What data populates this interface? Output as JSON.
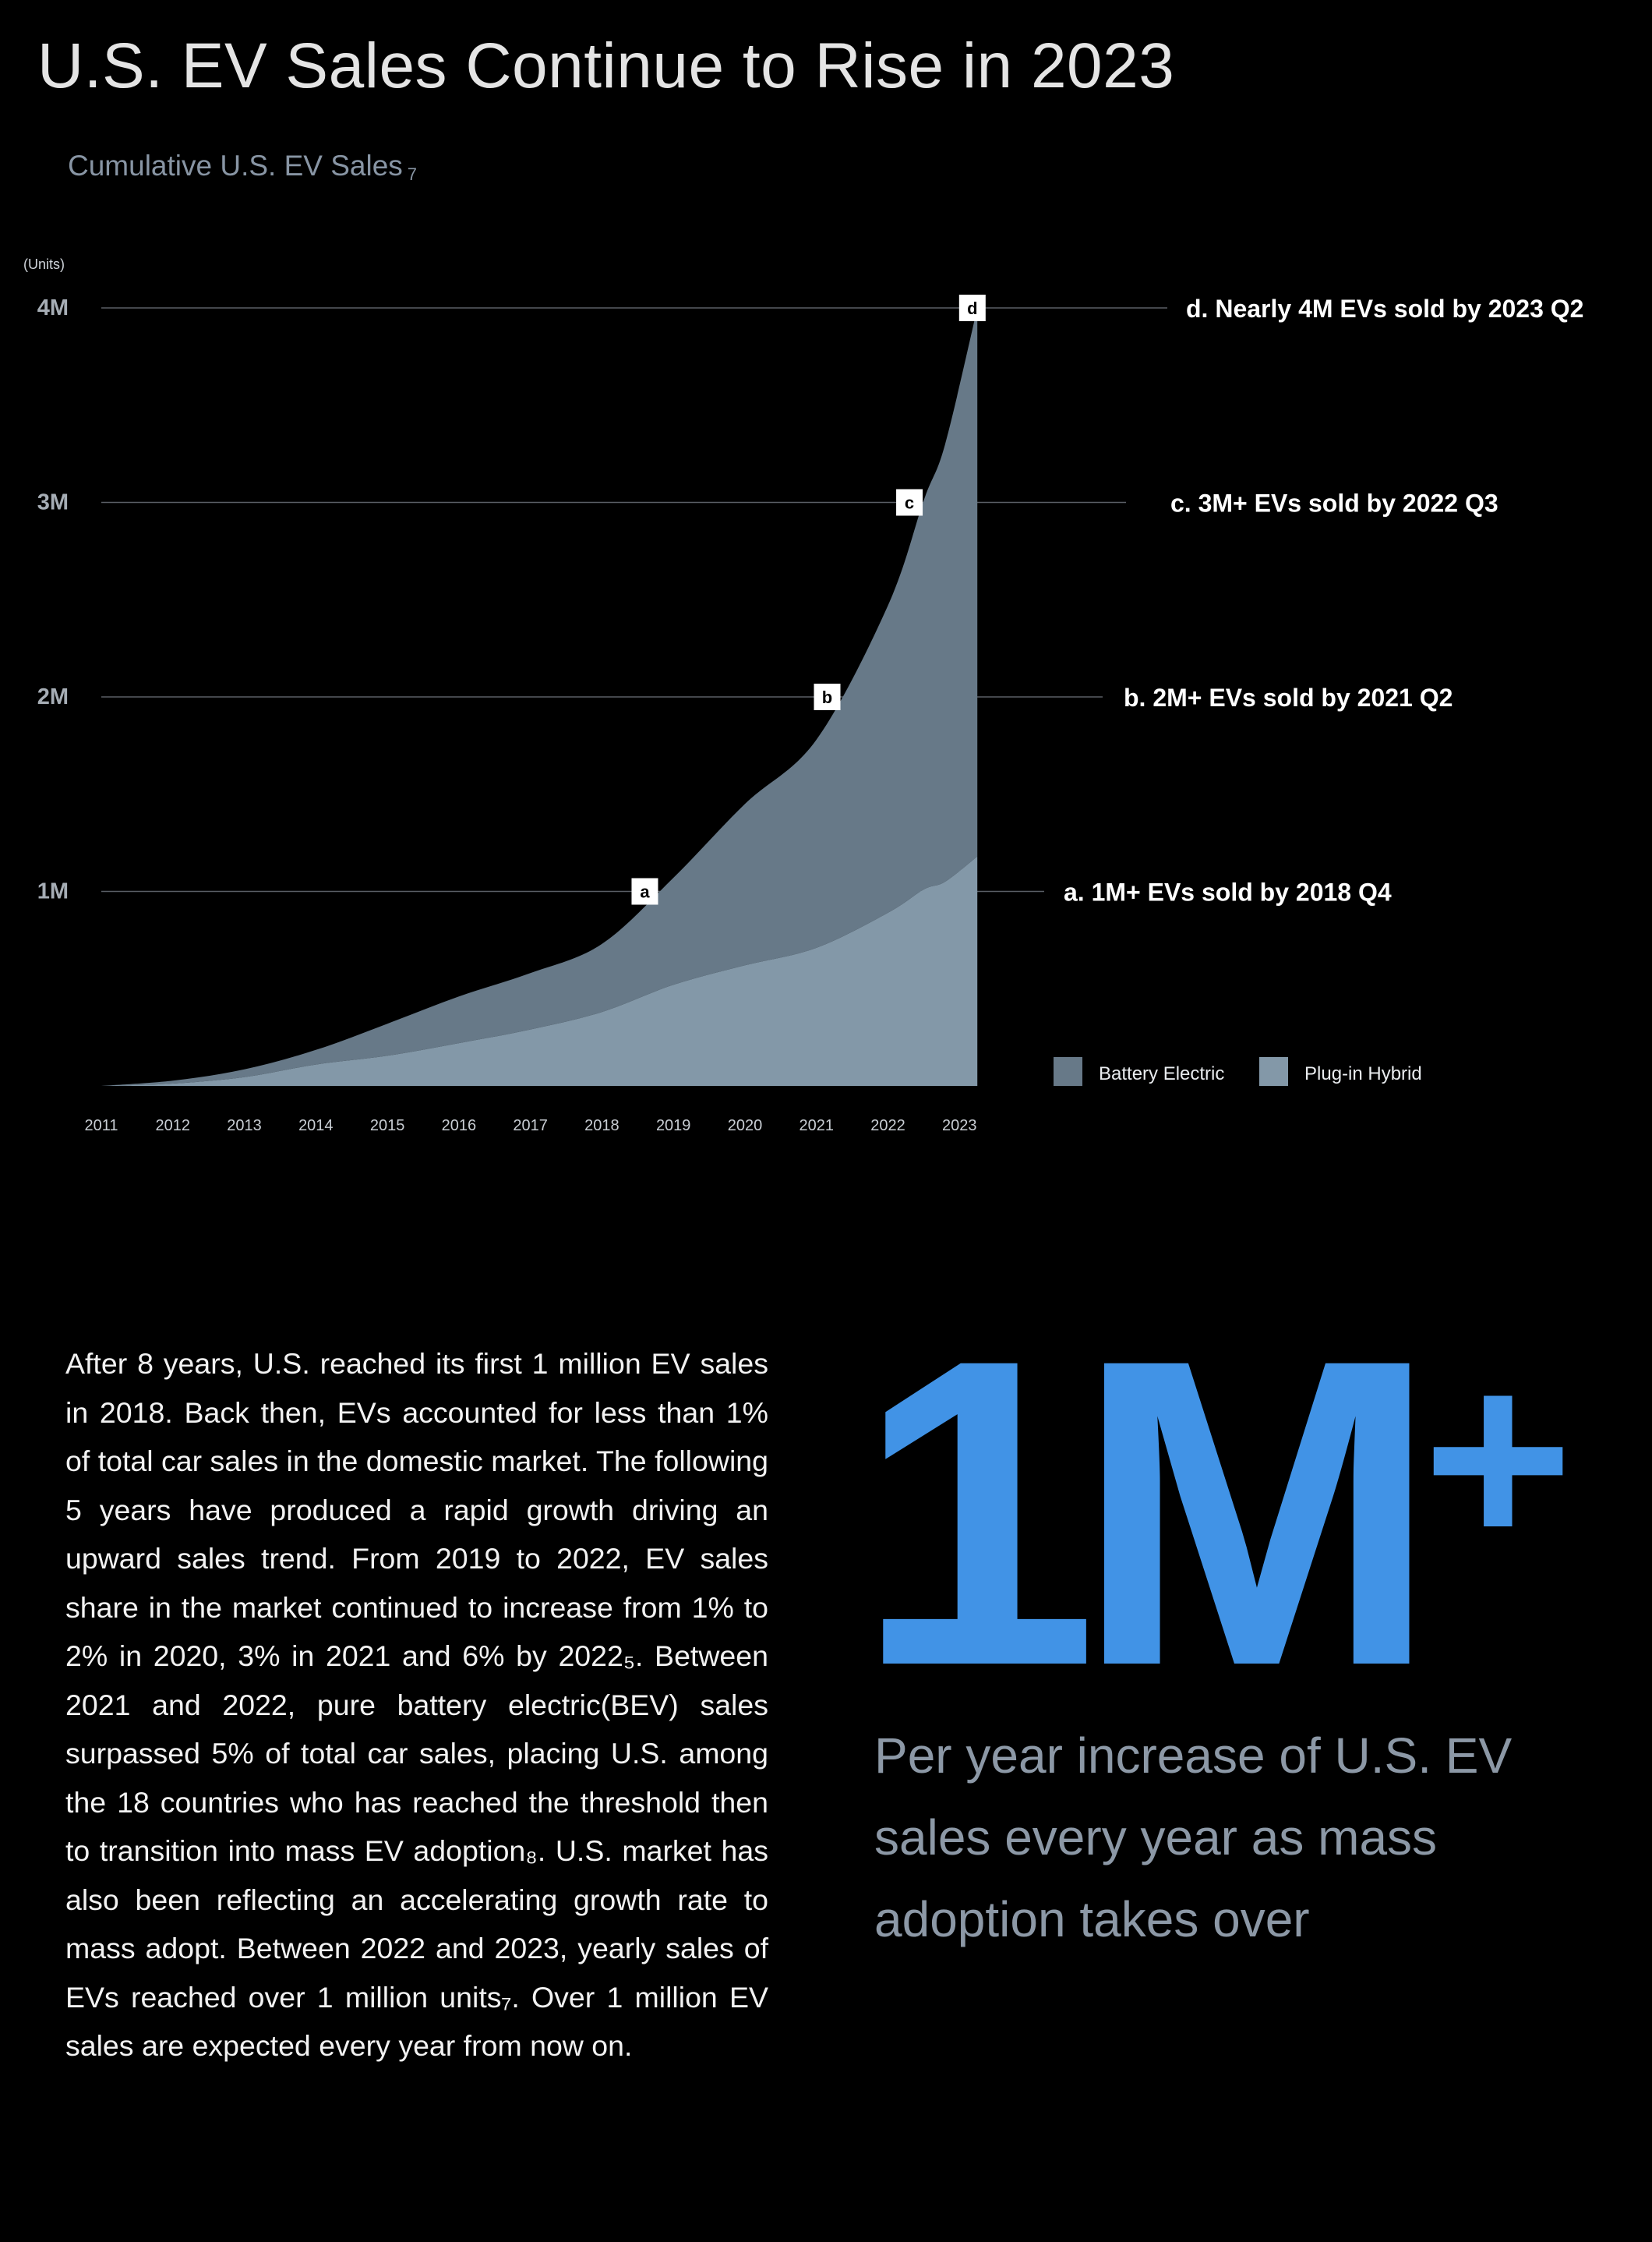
{
  "page": {
    "title": "U.S. EV Sales Continue to Rise in 2023",
    "subtitle": "Cumulative U.S. EV Sales",
    "subtitle_ref": "7"
  },
  "colors": {
    "background": "#000000",
    "battery_electric": "#677988",
    "plug_in_hybrid": "#8398a8",
    "accent": "#4193e6",
    "muted_text": "#8c98a6"
  },
  "chart_data": {
    "type": "area",
    "title": "Cumulative U.S. EV Sales",
    "ylabel": "(Units)",
    "xlabel": "",
    "stacked": true,
    "ylim": [
      0,
      4000000
    ],
    "xlim": [
      2011,
      2023.4
    ],
    "yticks": [
      {
        "value": 1000000,
        "label": "1M"
      },
      {
        "value": 2000000,
        "label": "2M"
      },
      {
        "value": 3000000,
        "label": "3M"
      },
      {
        "value": 4000000,
        "label": "4M"
      }
    ],
    "xticks": [
      "2011",
      "2012",
      "2013",
      "2014",
      "2015",
      "2016",
      "2017",
      "2018",
      "2019",
      "2020",
      "2021",
      "2022",
      "2023"
    ],
    "grid": "horizontal",
    "legend_position": "bottom-right",
    "series": [
      {
        "name": "Plug-in Hybrid",
        "color": "#8398a8",
        "points": [
          [
            2011,
            0
          ],
          [
            2012,
            12000
          ],
          [
            2013,
            45000
          ],
          [
            2014,
            110000
          ],
          [
            2015,
            155000
          ],
          [
            2016,
            220000
          ],
          [
            2017,
            290000
          ],
          [
            2018,
            380000
          ],
          [
            2019,
            520000
          ],
          [
            2020,
            620000
          ],
          [
            2021,
            710000
          ],
          [
            2022,
            890000
          ],
          [
            2022.5,
            1010000
          ],
          [
            2022.8,
            1050000
          ],
          [
            2023.25,
            1180000
          ]
        ]
      },
      {
        "name": "Battery Electric",
        "color": "#677988",
        "points": [
          [
            2011,
            0
          ],
          [
            2012,
            15000
          ],
          [
            2013,
            40000
          ],
          [
            2014,
            75000
          ],
          [
            2015,
            165000
          ],
          [
            2016,
            240000
          ],
          [
            2017,
            290000
          ],
          [
            2018,
            350000
          ],
          [
            2019,
            550000
          ],
          [
            2020,
            830000
          ],
          [
            2021,
            1070000
          ],
          [
            2022,
            1580000
          ],
          [
            2022.5,
            2000000
          ],
          [
            2022.8,
            2250000
          ],
          [
            2023.25,
            2820000
          ]
        ]
      }
    ],
    "markers": [
      {
        "key": "a",
        "x": 2018.6,
        "y": 1000000,
        "label": "a. 1M+ EVs sold by 2018 Q4"
      },
      {
        "key": "b",
        "x": 2021.15,
        "y": 2000000,
        "label": "b. 2M+ EVs sold by 2021 Q2"
      },
      {
        "key": "c",
        "x": 2022.3,
        "y": 3000000,
        "label": "c. 3M+ EVs sold by 2022 Q3"
      },
      {
        "key": "d",
        "x": 2023.18,
        "y": 4000000,
        "label": "d. Nearly 4M EVs sold by 2023 Q2"
      }
    ]
  },
  "stat": {
    "value": "1M",
    "plus": "+",
    "description": "Per year increase of U.S. EV sales every year as mass adoption takes over"
  },
  "body": {
    "paragraph": "After 8 years, U.S. reached its first 1 million EV sales in 2018. Back then, EVs accounted for less than 1% of total car sales in the domestic market. The following 5 years have produced a rapid growth driving an upward sales trend. From 2019 to 2022, EV sales share in the market continued to increase from 1% to 2% in 2020, 3% in 2021 and 6% by 2022₅. Between 2021 and 2022, pure battery electric(BEV) sales surpassed 5% of total car sales, placing U.S. among the 18 countries who has reached the threshold then to transition into mass EV adoption₈. U.S. market has also been reflecting an accelerating growth rate to mass adopt. Between 2022 and 2023, yearly sales of EVs reached over 1 million units₇. Over 1 million EV sales are expected every year from now on."
  }
}
